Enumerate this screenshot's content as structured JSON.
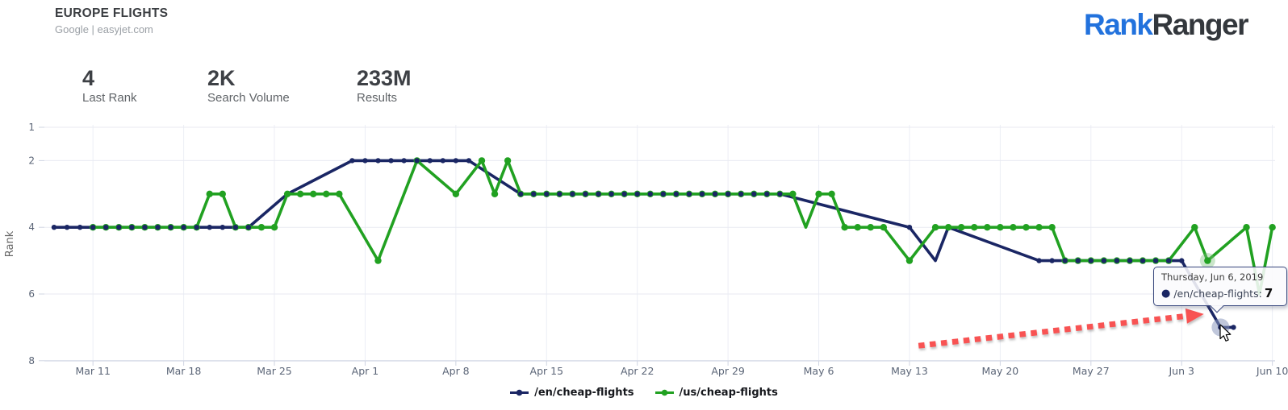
{
  "header": {
    "title": "EUROPE FLIGHTS",
    "subtitle": "Google | easyjet.com"
  },
  "logo": {
    "part1": "Rank",
    "part2": "Ranger",
    "color1": "#2272dd",
    "color2": "#33373c"
  },
  "stats": [
    {
      "value": "4",
      "label": "Last Rank"
    },
    {
      "value": "2K",
      "label": "Search Volume"
    },
    {
      "value": "233M",
      "label": "Results"
    }
  ],
  "legend": {
    "items": [
      {
        "label": "/en/cheap-flights",
        "color": "#1a2664"
      },
      {
        "label": "/us/cheap-flights",
        "color": "#21a121"
      }
    ]
  },
  "tooltip": {
    "date": "Thursday, Jun 6, 2019",
    "series_label": "/en/cheap-flights:",
    "value": "7",
    "bullet": "●"
  },
  "chart_data": {
    "type": "line",
    "x_unit": "day",
    "x_index_0_date": "Mar 8, 2019",
    "x_axis": {
      "ticks": [
        {
          "label": "Mar 11",
          "d": 3
        },
        {
          "label": "Mar 18",
          "d": 10
        },
        {
          "label": "Mar 25",
          "d": 17
        },
        {
          "label": "Apr 1",
          "d": 24
        },
        {
          "label": "Apr 8",
          "d": 31
        },
        {
          "label": "Apr 15",
          "d": 38
        },
        {
          "label": "Apr 22",
          "d": 45
        },
        {
          "label": "Apr 29",
          "d": 52
        },
        {
          "label": "May 6",
          "d": 59
        },
        {
          "label": "May 13",
          "d": 66
        },
        {
          "label": "May 20",
          "d": 73
        },
        {
          "label": "May 27",
          "d": 80
        },
        {
          "label": "Jun 3",
          "d": 87
        },
        {
          "label": "Jun 10",
          "d": 94
        }
      ]
    },
    "y_axis": {
      "label": "Rank",
      "ticks": [
        1,
        2,
        4,
        6,
        8
      ],
      "min": 1,
      "max": 8,
      "inverted": true
    },
    "series": [
      {
        "name": "/en/cheap-flights",
        "color": "#1a2664",
        "dot_r": 3.2,
        "line_w": 3.6,
        "points": [
          [
            0,
            4,
            1
          ],
          [
            1,
            4,
            1
          ],
          [
            2,
            4,
            1
          ],
          [
            3,
            4,
            1
          ],
          [
            4,
            4,
            1
          ],
          [
            5,
            4,
            1
          ],
          [
            6,
            4,
            1
          ],
          [
            7,
            4,
            1
          ],
          [
            8,
            4,
            1
          ],
          [
            9,
            4,
            1
          ],
          [
            10,
            4,
            1
          ],
          [
            11,
            4,
            1
          ],
          [
            12,
            4,
            1
          ],
          [
            13,
            4,
            1
          ],
          [
            14,
            4,
            1
          ],
          [
            15,
            4,
            1
          ],
          [
            18,
            3,
            0
          ],
          [
            23,
            2,
            1
          ],
          [
            24,
            2,
            1
          ],
          [
            25,
            2,
            1
          ],
          [
            26,
            2,
            1
          ],
          [
            27,
            2,
            1
          ],
          [
            28,
            2,
            1
          ],
          [
            29,
            2,
            1
          ],
          [
            30,
            2,
            1
          ],
          [
            31,
            2,
            1
          ],
          [
            32,
            2,
            1
          ],
          [
            36,
            3,
            1
          ],
          [
            37,
            3,
            1
          ],
          [
            38,
            3,
            1
          ],
          [
            39,
            3,
            1
          ],
          [
            40,
            3,
            1
          ],
          [
            41,
            3,
            1
          ],
          [
            42,
            3,
            1
          ],
          [
            43,
            3,
            1
          ],
          [
            44,
            3,
            1
          ],
          [
            45,
            3,
            1
          ],
          [
            46,
            3,
            1
          ],
          [
            47,
            3,
            1
          ],
          [
            48,
            3,
            1
          ],
          [
            49,
            3,
            1
          ],
          [
            50,
            3,
            1
          ],
          [
            51,
            3,
            1
          ],
          [
            52,
            3,
            1
          ],
          [
            53,
            3,
            1
          ],
          [
            54,
            3,
            1
          ],
          [
            55,
            3,
            1
          ],
          [
            56,
            3,
            1
          ],
          [
            66,
            4,
            1
          ],
          [
            68,
            5,
            0
          ],
          [
            69,
            4,
            0
          ],
          [
            76,
            5,
            1
          ],
          [
            77,
            5,
            1
          ],
          [
            78,
            5,
            1
          ],
          [
            79,
            5,
            1
          ],
          [
            80,
            5,
            1
          ],
          [
            81,
            5,
            1
          ],
          [
            82,
            5,
            1
          ],
          [
            83,
            5,
            1
          ],
          [
            84,
            5,
            1
          ],
          [
            85,
            5,
            1
          ],
          [
            86,
            5,
            1
          ],
          [
            87,
            5,
            1
          ],
          [
            90,
            7,
            1
          ],
          [
            91,
            7,
            1
          ]
        ]
      },
      {
        "name": "/us/cheap-flights",
        "color": "#21a121",
        "dot_r": 4.2,
        "line_w": 3.6,
        "points": [
          [
            3,
            4,
            1
          ],
          [
            4,
            4,
            1
          ],
          [
            5,
            4,
            1
          ],
          [
            6,
            4,
            1
          ],
          [
            7,
            4,
            1
          ],
          [
            8,
            4,
            1
          ],
          [
            9,
            4,
            1
          ],
          [
            10,
            4,
            1
          ],
          [
            11,
            4,
            1
          ],
          [
            12,
            3,
            1
          ],
          [
            13,
            3,
            1
          ],
          [
            14,
            4,
            1
          ],
          [
            15,
            4,
            1
          ],
          [
            16,
            4,
            1
          ],
          [
            17,
            4,
            1
          ],
          [
            18,
            3,
            1
          ],
          [
            19,
            3,
            1
          ],
          [
            20,
            3,
            1
          ],
          [
            21,
            3,
            1
          ],
          [
            22,
            3,
            1
          ],
          [
            25,
            5,
            1
          ],
          [
            28,
            2,
            1
          ],
          [
            31,
            3,
            1
          ],
          [
            33,
            2,
            1
          ],
          [
            34,
            3,
            1
          ],
          [
            35,
            2,
            1
          ],
          [
            36,
            3,
            1
          ],
          [
            37,
            3,
            1
          ],
          [
            38,
            3,
            1
          ],
          [
            39,
            3,
            1
          ],
          [
            40,
            3,
            1
          ],
          [
            41,
            3,
            1
          ],
          [
            42,
            3,
            1
          ],
          [
            43,
            3,
            1
          ],
          [
            44,
            3,
            1
          ],
          [
            45,
            3,
            1
          ],
          [
            46,
            3,
            1
          ],
          [
            47,
            3,
            1
          ],
          [
            48,
            3,
            1
          ],
          [
            49,
            3,
            1
          ],
          [
            50,
            3,
            1
          ],
          [
            51,
            3,
            1
          ],
          [
            52,
            3,
            1
          ],
          [
            53,
            3,
            1
          ],
          [
            54,
            3,
            1
          ],
          [
            55,
            3,
            1
          ],
          [
            56,
            3,
            1
          ],
          [
            57,
            3,
            1
          ],
          [
            58,
            4,
            0
          ],
          [
            59,
            3,
            1
          ],
          [
            60,
            3,
            1
          ],
          [
            61,
            4,
            1
          ],
          [
            62,
            4,
            1
          ],
          [
            63,
            4,
            1
          ],
          [
            64,
            4,
            1
          ],
          [
            66,
            5,
            1
          ],
          [
            68,
            4,
            1
          ],
          [
            69,
            4,
            1
          ],
          [
            70,
            4,
            1
          ],
          [
            71,
            4,
            1
          ],
          [
            72,
            4,
            1
          ],
          [
            73,
            4,
            1
          ],
          [
            74,
            4,
            1
          ],
          [
            75,
            4,
            1
          ],
          [
            76,
            4,
            1
          ],
          [
            77,
            4,
            1
          ],
          [
            78,
            5,
            1
          ],
          [
            79,
            5,
            1
          ],
          [
            80,
            5,
            1
          ],
          [
            81,
            5,
            1
          ],
          [
            82,
            5,
            1
          ],
          [
            83,
            5,
            1
          ],
          [
            84,
            5,
            1
          ],
          [
            85,
            5,
            1
          ],
          [
            86,
            5,
            1
          ],
          [
            88,
            4,
            1
          ],
          [
            89,
            5,
            1
          ],
          [
            92,
            4,
            1
          ],
          [
            93,
            6,
            0
          ],
          [
            94,
            4,
            1
          ]
        ]
      }
    ],
    "hover": {
      "date": "Thursday, Jun 6, 2019",
      "highlighted": [
        {
          "series": "/en/cheap-flights",
          "d": 90,
          "rank": 7,
          "halo_color": "#8d99bd"
        },
        {
          "series": "/us/cheap-flights",
          "d": 89,
          "rank": 5,
          "halo_color": "#7bbf7b"
        }
      ]
    },
    "annotation_arrow": {
      "color": "#f85252",
      "from_d": 66.7,
      "from_rank": 7.55,
      "to_d": 87.6,
      "to_rank": 6.65,
      "style": "dotted"
    }
  }
}
